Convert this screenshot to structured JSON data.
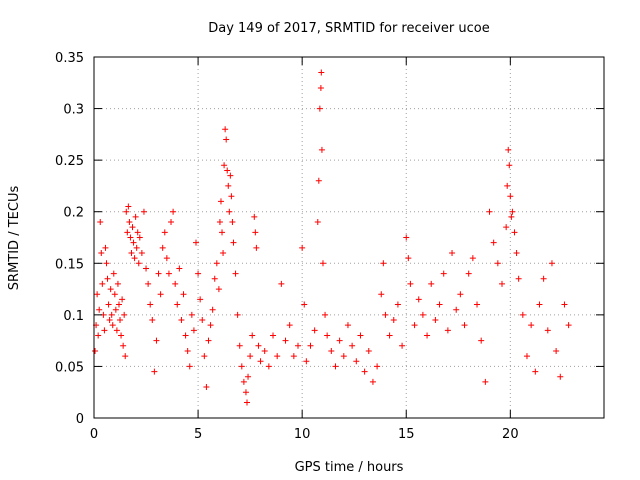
{
  "chart_data": {
    "type": "scatter",
    "title": "Day 149 of 2017, SRMTID for receiver ucoe",
    "xlabel": "GPS time / hours",
    "ylabel": "SRMTID / TECUs",
    "xlim": [
      0,
      24.5
    ],
    "ylim": [
      0,
      0.35
    ],
    "xticks": [
      0,
      5,
      10,
      15,
      20
    ],
    "xtick_labels": [
      "0",
      "5",
      "10",
      "15",
      "20"
    ],
    "yticks": [
      0,
      0.05,
      0.1,
      0.15,
      0.2,
      0.25,
      0.3,
      0.35
    ],
    "ytick_labels": [
      "0",
      "0.05",
      "0.1",
      "0.15",
      "0.2",
      "0.25",
      "0.3",
      "0.35"
    ],
    "grid": true,
    "marker": "+",
    "series": [
      {
        "name": "SRMTID",
        "color": "#ff0000",
        "points": [
          [
            0.05,
            0.065
          ],
          [
            0.1,
            0.09
          ],
          [
            0.15,
            0.12
          ],
          [
            0.2,
            0.08
          ],
          [
            0.25,
            0.105
          ],
          [
            0.3,
            0.19
          ],
          [
            0.35,
            0.16
          ],
          [
            0.4,
            0.13
          ],
          [
            0.45,
            0.1
          ],
          [
            0.5,
            0.085
          ],
          [
            0.55,
            0.165
          ],
          [
            0.6,
            0.15
          ],
          [
            0.65,
            0.135
          ],
          [
            0.7,
            0.11
          ],
          [
            0.75,
            0.095
          ],
          [
            0.8,
            0.125
          ],
          [
            0.85,
            0.1
          ],
          [
            0.9,
            0.09
          ],
          [
            0.95,
            0.14
          ],
          [
            1.0,
            0.12
          ],
          [
            1.05,
            0.105
          ],
          [
            1.1,
            0.085
          ],
          [
            1.15,
            0.13
          ],
          [
            1.2,
            0.11
          ],
          [
            1.25,
            0.095
          ],
          [
            1.3,
            0.08
          ],
          [
            1.35,
            0.115
          ],
          [
            1.4,
            0.07
          ],
          [
            1.45,
            0.1
          ],
          [
            1.5,
            0.06
          ],
          [
            1.55,
            0.2
          ],
          [
            1.6,
            0.18
          ],
          [
            1.65,
            0.205
          ],
          [
            1.7,
            0.19
          ],
          [
            1.75,
            0.175
          ],
          [
            1.8,
            0.16
          ],
          [
            1.85,
            0.185
          ],
          [
            1.9,
            0.17
          ],
          [
            1.95,
            0.155
          ],
          [
            2.0,
            0.195
          ],
          [
            2.05,
            0.165
          ],
          [
            2.1,
            0.18
          ],
          [
            2.15,
            0.15
          ],
          [
            2.2,
            0.175
          ],
          [
            2.3,
            0.16
          ],
          [
            2.4,
            0.2
          ],
          [
            2.5,
            0.145
          ],
          [
            2.6,
            0.13
          ],
          [
            2.7,
            0.11
          ],
          [
            2.8,
            0.095
          ],
          [
            2.9,
            0.045
          ],
          [
            3.0,
            0.075
          ],
          [
            3.1,
            0.14
          ],
          [
            3.2,
            0.12
          ],
          [
            3.3,
            0.165
          ],
          [
            3.4,
            0.18
          ],
          [
            3.5,
            0.155
          ],
          [
            3.6,
            0.14
          ],
          [
            3.7,
            0.19
          ],
          [
            3.8,
            0.2
          ],
          [
            3.9,
            0.13
          ],
          [
            4.0,
            0.11
          ],
          [
            4.1,
            0.145
          ],
          [
            4.2,
            0.095
          ],
          [
            4.3,
            0.12
          ],
          [
            4.4,
            0.08
          ],
          [
            4.5,
            0.065
          ],
          [
            4.6,
            0.05
          ],
          [
            4.7,
            0.1
          ],
          [
            4.8,
            0.085
          ],
          [
            4.9,
            0.17
          ],
          [
            5.0,
            0.14
          ],
          [
            5.1,
            0.115
          ],
          [
            5.2,
            0.095
          ],
          [
            5.3,
            0.06
          ],
          [
            5.4,
            0.03
          ],
          [
            5.5,
            0.075
          ],
          [
            5.6,
            0.09
          ],
          [
            5.7,
            0.105
          ],
          [
            5.8,
            0.135
          ],
          [
            5.9,
            0.15
          ],
          [
            6.0,
            0.125
          ],
          [
            6.05,
            0.19
          ],
          [
            6.1,
            0.21
          ],
          [
            6.15,
            0.18
          ],
          [
            6.2,
            0.16
          ],
          [
            6.25,
            0.245
          ],
          [
            6.3,
            0.28
          ],
          [
            6.35,
            0.27
          ],
          [
            6.4,
            0.24
          ],
          [
            6.45,
            0.225
          ],
          [
            6.5,
            0.2
          ],
          [
            6.55,
            0.235
          ],
          [
            6.6,
            0.215
          ],
          [
            6.65,
            0.19
          ],
          [
            6.7,
            0.17
          ],
          [
            6.8,
            0.14
          ],
          [
            6.9,
            0.1
          ],
          [
            7.0,
            0.07
          ],
          [
            7.1,
            0.05
          ],
          [
            7.2,
            0.035
          ],
          [
            7.3,
            0.025
          ],
          [
            7.35,
            0.015
          ],
          [
            7.4,
            0.04
          ],
          [
            7.5,
            0.06
          ],
          [
            7.6,
            0.08
          ],
          [
            7.7,
            0.195
          ],
          [
            7.75,
            0.18
          ],
          [
            7.8,
            0.165
          ],
          [
            7.9,
            0.07
          ],
          [
            8.0,
            0.055
          ],
          [
            8.2,
            0.065
          ],
          [
            8.4,
            0.05
          ],
          [
            8.6,
            0.08
          ],
          [
            8.8,
            0.06
          ],
          [
            9.0,
            0.13
          ],
          [
            9.2,
            0.075
          ],
          [
            9.4,
            0.09
          ],
          [
            9.6,
            0.06
          ],
          [
            9.8,
            0.07
          ],
          [
            10.0,
            0.165
          ],
          [
            10.1,
            0.11
          ],
          [
            10.2,
            0.055
          ],
          [
            10.4,
            0.07
          ],
          [
            10.6,
            0.085
          ],
          [
            10.75,
            0.19
          ],
          [
            10.8,
            0.23
          ],
          [
            10.85,
            0.3
          ],
          [
            10.9,
            0.32
          ],
          [
            10.92,
            0.335
          ],
          [
            10.95,
            0.26
          ],
          [
            11.0,
            0.15
          ],
          [
            11.1,
            0.1
          ],
          [
            11.2,
            0.08
          ],
          [
            11.4,
            0.065
          ],
          [
            11.6,
            0.05
          ],
          [
            11.8,
            0.075
          ],
          [
            12.0,
            0.06
          ],
          [
            12.2,
            0.09
          ],
          [
            12.4,
            0.07
          ],
          [
            12.6,
            0.055
          ],
          [
            12.8,
            0.08
          ],
          [
            13.0,
            0.045
          ],
          [
            13.2,
            0.065
          ],
          [
            13.4,
            0.035
          ],
          [
            13.6,
            0.05
          ],
          [
            13.8,
            0.12
          ],
          [
            13.9,
            0.15
          ],
          [
            14.0,
            0.1
          ],
          [
            14.2,
            0.08
          ],
          [
            14.4,
            0.095
          ],
          [
            14.6,
            0.11
          ],
          [
            14.8,
            0.07
          ],
          [
            15.0,
            0.175
          ],
          [
            15.1,
            0.155
          ],
          [
            15.2,
            0.13
          ],
          [
            15.4,
            0.09
          ],
          [
            15.6,
            0.115
          ],
          [
            15.8,
            0.1
          ],
          [
            16.0,
            0.08
          ],
          [
            16.2,
            0.13
          ],
          [
            16.4,
            0.095
          ],
          [
            16.6,
            0.11
          ],
          [
            16.8,
            0.14
          ],
          [
            17.0,
            0.085
          ],
          [
            17.2,
            0.16
          ],
          [
            17.4,
            0.105
          ],
          [
            17.6,
            0.12
          ],
          [
            17.8,
            0.09
          ],
          [
            18.0,
            0.14
          ],
          [
            18.2,
            0.155
          ],
          [
            18.4,
            0.11
          ],
          [
            18.6,
            0.075
          ],
          [
            18.8,
            0.035
          ],
          [
            19.0,
            0.2
          ],
          [
            19.2,
            0.17
          ],
          [
            19.4,
            0.15
          ],
          [
            19.6,
            0.13
          ],
          [
            19.8,
            0.185
          ],
          [
            19.85,
            0.225
          ],
          [
            19.9,
            0.26
          ],
          [
            19.95,
            0.245
          ],
          [
            20.0,
            0.215
          ],
          [
            20.05,
            0.195
          ],
          [
            20.1,
            0.2
          ],
          [
            20.2,
            0.18
          ],
          [
            20.3,
            0.16
          ],
          [
            20.4,
            0.135
          ],
          [
            20.6,
            0.1
          ],
          [
            20.8,
            0.06
          ],
          [
            21.0,
            0.09
          ],
          [
            21.2,
            0.045
          ],
          [
            21.4,
            0.11
          ],
          [
            21.6,
            0.135
          ],
          [
            21.8,
            0.085
          ],
          [
            22.0,
            0.15
          ],
          [
            22.2,
            0.065
          ],
          [
            22.4,
            0.04
          ],
          [
            22.6,
            0.11
          ],
          [
            22.8,
            0.09
          ]
        ]
      }
    ]
  }
}
